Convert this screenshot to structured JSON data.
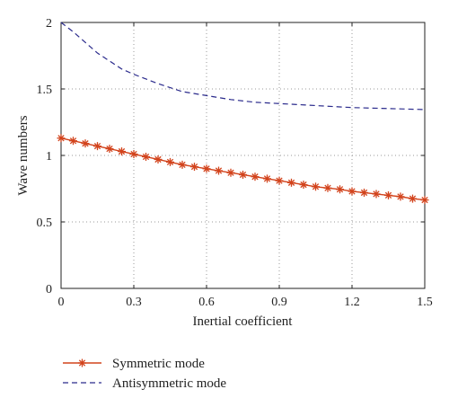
{
  "chart_data": {
    "type": "line",
    "xlabel": "Inertial coefficient",
    "ylabel": "Wave numbers",
    "xlim": [
      0,
      1.5
    ],
    "ylim": [
      0,
      2
    ],
    "xticks": [
      0,
      0.3,
      0.6,
      0.9,
      1.2,
      1.5
    ],
    "xtick_labels": [
      "0",
      "0.3",
      "0.6",
      "0.9",
      "1.2",
      "1.5"
    ],
    "yticks": [
      0,
      0.5,
      1,
      1.5,
      2
    ],
    "ytick_labels": [
      "0",
      "0.5",
      "1",
      "1.5",
      "2"
    ],
    "grid": true,
    "legend_position": "bottom-left, below plot",
    "series": [
      {
        "name": "Symmetric mode",
        "color": "#d2431c",
        "line_style": "solid",
        "marker": "asterisk",
        "x": [
          0,
          0.05,
          0.1,
          0.15,
          0.2,
          0.25,
          0.3,
          0.35,
          0.4,
          0.45,
          0.5,
          0.55,
          0.6,
          0.65,
          0.7,
          0.75,
          0.8,
          0.85,
          0.9,
          0.95,
          1.0,
          1.05,
          1.1,
          1.15,
          1.2,
          1.25,
          1.3,
          1.35,
          1.4,
          1.45,
          1.5
        ],
        "y": [
          1.13,
          1.11,
          1.09,
          1.07,
          1.05,
          1.03,
          1.01,
          0.99,
          0.97,
          0.95,
          0.93,
          0.915,
          0.9,
          0.885,
          0.87,
          0.855,
          0.84,
          0.825,
          0.81,
          0.795,
          0.78,
          0.765,
          0.755,
          0.745,
          0.73,
          0.72,
          0.71,
          0.7,
          0.69,
          0.675,
          0.665
        ]
      },
      {
        "name": "Antisymmetric mode",
        "color": "#2b2b8c",
        "line_style": "dashed",
        "marker": "none",
        "x": [
          0,
          0.05,
          0.1,
          0.15,
          0.2,
          0.25,
          0.3,
          0.4,
          0.5,
          0.6,
          0.7,
          0.8,
          0.9,
          1.0,
          1.1,
          1.2,
          1.3,
          1.4,
          1.5
        ],
        "y": [
          2.0,
          1.93,
          1.85,
          1.77,
          1.71,
          1.65,
          1.61,
          1.54,
          1.48,
          1.45,
          1.42,
          1.4,
          1.39,
          1.38,
          1.37,
          1.36,
          1.355,
          1.35,
          1.345
        ]
      }
    ]
  }
}
